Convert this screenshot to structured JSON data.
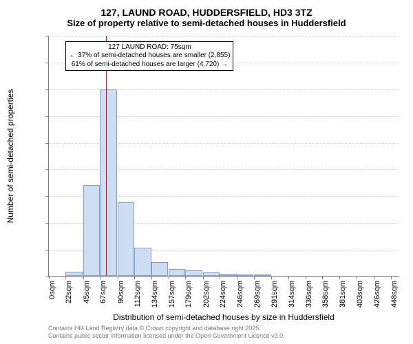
{
  "title_main": "127, LAUND ROAD, HUDDERSFIELD, HD3 3TZ",
  "title_sub": "Size of property relative to semi-detached houses in Huddersfield",
  "chart": {
    "type": "histogram",
    "y_axis_label": "Number of semi-detached properties",
    "x_axis_label": "Distribution of semi-detached houses by size in Huddersfield",
    "ylim_min": 0,
    "ylim_max": 4500,
    "ytick_step": 500,
    "yticks": [
      0,
      500,
      1000,
      1500,
      2000,
      2500,
      3000,
      3500,
      4000,
      4500
    ],
    "x_min_sqm": 0,
    "x_max_sqm": 460,
    "xticks_sqm": [
      0,
      22,
      45,
      67,
      90,
      112,
      134,
      157,
      179,
      202,
      224,
      246,
      269,
      291,
      314,
      336,
      358,
      381,
      403,
      426,
      448
    ],
    "xticks_labels": [
      "0sqm",
      "22sqm",
      "45sqm",
      "67sqm",
      "90sqm",
      "112sqm",
      "134sqm",
      "157sqm",
      "179sqm",
      "202sqm",
      "224sqm",
      "246sqm",
      "269sqm",
      "291sqm",
      "314sqm",
      "336sqm",
      "358sqm",
      "381sqm",
      "403sqm",
      "426sqm",
      "448sqm"
    ],
    "bar_bin_width_sqm": 22,
    "bars": [
      {
        "x_start_sqm": 0,
        "count": 0
      },
      {
        "x_start_sqm": 22,
        "count": 80
      },
      {
        "x_start_sqm": 45,
        "count": 1700
      },
      {
        "x_start_sqm": 67,
        "count": 3480
      },
      {
        "x_start_sqm": 90,
        "count": 1380
      },
      {
        "x_start_sqm": 112,
        "count": 530
      },
      {
        "x_start_sqm": 134,
        "count": 260
      },
      {
        "x_start_sqm": 157,
        "count": 130
      },
      {
        "x_start_sqm": 179,
        "count": 100
      },
      {
        "x_start_sqm": 202,
        "count": 60
      },
      {
        "x_start_sqm": 224,
        "count": 40
      },
      {
        "x_start_sqm": 246,
        "count": 30
      },
      {
        "x_start_sqm": 269,
        "count": 30
      },
      {
        "x_start_sqm": 291,
        "count": 0
      },
      {
        "x_start_sqm": 314,
        "count": 0
      },
      {
        "x_start_sqm": 336,
        "count": 0
      },
      {
        "x_start_sqm": 358,
        "count": 0
      },
      {
        "x_start_sqm": 381,
        "count": 0
      },
      {
        "x_start_sqm": 403,
        "count": 0
      },
      {
        "x_start_sqm": 426,
        "count": 0
      },
      {
        "x_start_sqm": 448,
        "count": 0
      }
    ],
    "bar_fill_color": "#cdddf2",
    "bar_border_color": "#7f9ecf",
    "grid_color": "#cccccc",
    "axis_color": "#808080",
    "marker_line_sqm": 75,
    "marker_line_color": "#ff0000",
    "annotation": {
      "line1": "127 LAUND ROAD: 75sqm",
      "line2": "← 37% of semi-detached houses are smaller (2,855)",
      "line3": "61% of semi-detached houses are larger (4,720) →",
      "box_left_sqm": 22,
      "box_top_value": 4400,
      "border_color": "#000000",
      "bg_color": "#ffffff",
      "fontsize": 10
    },
    "background_color": "#ffffff",
    "title_fontsize": 14,
    "subtitle_fontsize": 13,
    "axis_label_fontsize": 12,
    "tick_fontsize": 11
  },
  "footnote_line1": "Contains HM Land Registry data © Crown copyright and database right 2025.",
  "footnote_line2": "Contains public sector information licensed under the Open Government Licence v3.0."
}
